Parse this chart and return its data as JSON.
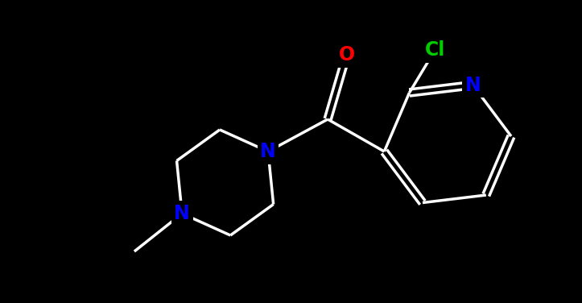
{
  "background_color": "#000000",
  "atom_colors": {
    "C": "#ffffff",
    "N": "#0000ff",
    "O": "#ff0000",
    "Cl": "#00cc00"
  },
  "bond_color": "#ffffff",
  "bond_width": 2.5,
  "font_size": 17,
  "fig_width": 7.23,
  "fig_height": 3.76,
  "dpi": 100,
  "xlim": [
    -4.5,
    4.5
  ],
  "ylim": [
    -3.0,
    3.0
  ]
}
